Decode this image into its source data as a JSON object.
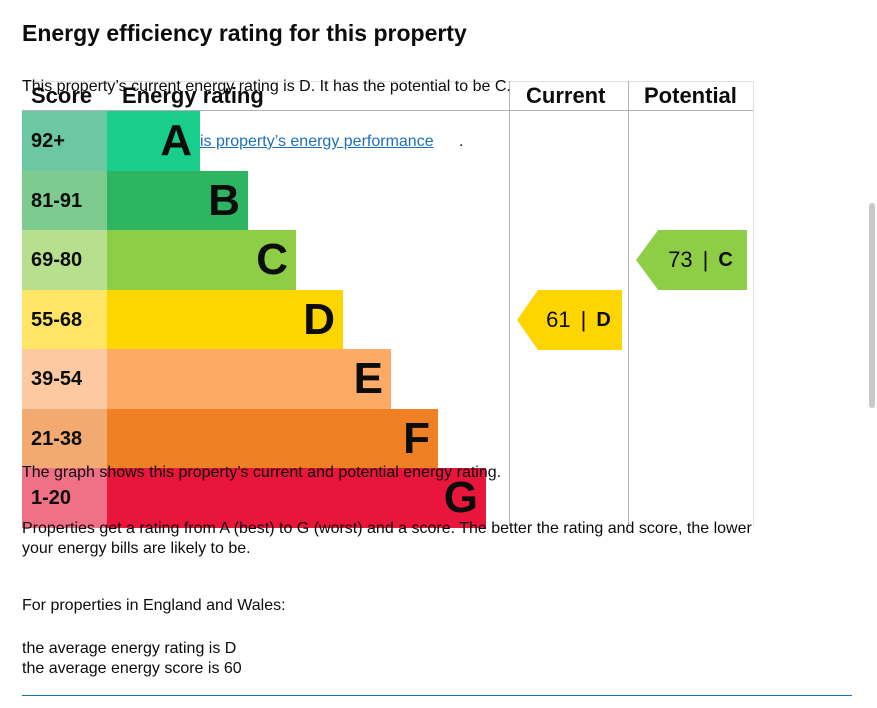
{
  "page": {
    "title": "Energy efficiency rating for this property",
    "current_rating_sentence": "This property’s current energy rating is D. It has the potential to be C.",
    "link_text": "is property’s energy performance",
    "link_suffix": ".",
    "graph_caption": "The graph shows this property’s current and potential energy rating.",
    "explanation_line1": "Properties get a rating from A (best) to G (worst) and a score. The better the rating and score, the lower",
    "explanation_line2": "your energy bills are likely to be.",
    "region_heading": "For properties in England and Wales:",
    "average_rating": "the average energy rating is D",
    "average_score": "the average energy score is 60"
  },
  "chart_data": {
    "type": "table",
    "headers": {
      "score": "Score",
      "rating": "Energy rating",
      "current": "Current",
      "potential": "Potential"
    },
    "bands": [
      {
        "letter": "A",
        "score": "92+",
        "color": "#19cd8b",
        "score_color": "#6cc8a3"
      },
      {
        "letter": "B",
        "score": "81-91",
        "color": "#2db562",
        "score_color": "#7ecb8f"
      },
      {
        "letter": "C",
        "score": "69-80",
        "color": "#8dce46",
        "score_color": "#b7df8d"
      },
      {
        "letter": "D",
        "score": "55-68",
        "color": "#ffd500",
        "score_color": "#ffe566"
      },
      {
        "letter": "E",
        "score": "39-54",
        "color": "#fcaa65",
        "score_color": "#fdc9a0"
      },
      {
        "letter": "F",
        "score": "21-38",
        "color": "#ef8023",
        "score_color": "#f3aa70"
      },
      {
        "letter": "G",
        "score": "1-20",
        "color": "#e9153b",
        "score_color": "#f07086"
      }
    ],
    "current": {
      "score": 61,
      "separator": "|",
      "letter": "D",
      "color": "#ffd500"
    },
    "potential": {
      "score": 73,
      "separator": "|",
      "letter": "C",
      "color": "#8dce46"
    }
  }
}
